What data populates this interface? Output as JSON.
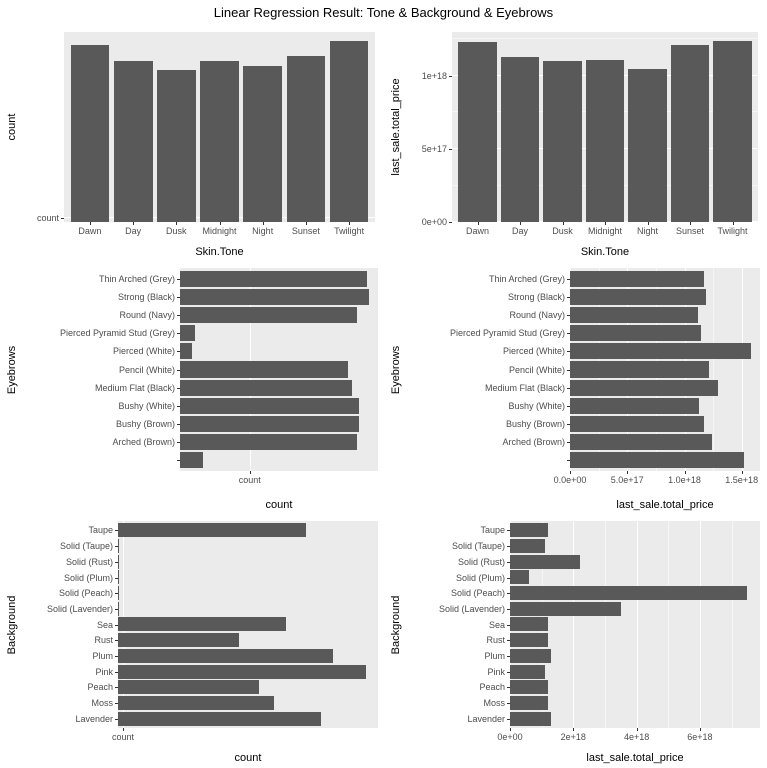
{
  "page_title": "Linear Regression Result: Tone & Background & Eyebrows",
  "theme": {
    "bar_color": "#595959",
    "panel_bg": "#EBEBEB",
    "grid_color": "#FFFFFF",
    "tick_text_color": "#4D4D4D",
    "axis_title_color": "#000000"
  },
  "chart_data": [
    {
      "name": "count-by-skin-tone",
      "type": "bar",
      "orientation": "vertical",
      "xlabel": "Skin.Tone",
      "ylabel": "count",
      "categories": [
        "Dawn",
        "Day",
        "Dusk",
        "Midnight",
        "Night",
        "Sunset",
        "Twilight"
      ],
      "values": [
        0.98,
        0.89,
        0.84,
        0.89,
        0.86,
        0.92,
        1.0
      ],
      "value_axis": {
        "max": 1.05,
        "relative": true,
        "note": "no numeric scale shown; values are fractions of tallest bar",
        "ticks": [
          {
            "label": "count",
            "at": 0.02
          }
        ]
      }
    },
    {
      "name": "total-price-by-skin-tone",
      "type": "bar",
      "orientation": "vertical",
      "xlabel": "Skin.Tone",
      "ylabel": "last_sale.total_price",
      "categories": [
        "Dawn",
        "Day",
        "Dusk",
        "Midnight",
        "Night",
        "Sunset",
        "Twilight"
      ],
      "values": [
        1.23e+18,
        1.13e+18,
        1.1e+18,
        1.11e+18,
        1.05e+18,
        1.21e+18,
        1.24e+18
      ],
      "value_axis": {
        "max": 1.3e+18,
        "relative": false,
        "ticks": [
          {
            "label": "0e+00",
            "at": 0
          },
          {
            "label": "5e+17",
            "at": 5e+17
          },
          {
            "label": "1e+18",
            "at": 1e+18
          }
        ]
      }
    },
    {
      "name": "count-by-eyebrows",
      "type": "bar",
      "orientation": "horizontal",
      "xlabel": "count",
      "ylabel": "Eyebrows",
      "categories": [
        "Thin Arched (Grey)",
        "Strong (Black)",
        "Round (Navy)",
        "Pierced Pyramid Stud (Grey)",
        "Pierced (White)",
        "Pencil (White)",
        "Medium Flat (Black)",
        "Bushy (White)",
        "Bushy (Brown)",
        "Arched (Brown)",
        ""
      ],
      "values": [
        0.99,
        1.0,
        0.94,
        0.08,
        0.065,
        0.89,
        0.91,
        0.95,
        0.95,
        0.94,
        0.12
      ],
      "value_axis": {
        "max": 1.05,
        "relative": true,
        "note": "no numeric scale shown; values are fractions of longest bar",
        "ticks": [
          {
            "label": "count",
            "at": 0.37
          }
        ]
      }
    },
    {
      "name": "total-price-by-eyebrows",
      "type": "bar",
      "orientation": "horizontal",
      "xlabel": "last_sale.total_price",
      "ylabel": "Eyebrows",
      "categories": [
        "Thin Arched (Grey)",
        "Strong (Black)",
        "Round (Navy)",
        "Pierced Pyramid Stud (Grey)",
        "Pierced (White)",
        "Pencil (White)",
        "Medium Flat (Black)",
        "Bushy (White)",
        "Bushy (Brown)",
        "Arched (Brown)",
        ""
      ],
      "values": [
        1.17e+18,
        1.19e+18,
        1.12e+18,
        1.14e+18,
        1.58e+18,
        1.21e+18,
        1.29e+18,
        1.13e+18,
        1.17e+18,
        1.24e+18,
        1.52e+18
      ],
      "value_axis": {
        "max": 1.66e+18,
        "relative": false,
        "ticks": [
          {
            "label": "0.0e+00",
            "at": 0
          },
          {
            "label": "5.0e+17",
            "at": 5e+17
          },
          {
            "label": "1.0e+18",
            "at": 1e+18
          },
          {
            "label": "1.5e+18",
            "at": 1.5e+18
          }
        ]
      }
    },
    {
      "name": "count-by-background",
      "type": "bar",
      "orientation": "horizontal",
      "xlabel": "count",
      "ylabel": "Background",
      "categories": [
        "Taupe",
        "Solid (Taupe)",
        "Solid (Rust)",
        "Solid (Plum)",
        "Solid (Peach)",
        "Solid (Lavender)",
        "Sea",
        "Rust",
        "Plum",
        "Pink",
        "Peach",
        "Moss",
        "Lavender"
      ],
      "values": [
        0.76,
        0.005,
        0.005,
        0.005,
        0.005,
        0.005,
        0.68,
        0.49,
        0.87,
        1.0,
        0.57,
        0.63,
        0.82
      ],
      "value_axis": {
        "max": 1.05,
        "relative": true,
        "note": "no numeric scale shown; values are fractions of longest bar",
        "ticks": [
          {
            "label": "count",
            "at": 0.02
          }
        ]
      }
    },
    {
      "name": "total-price-by-background",
      "type": "bar",
      "orientation": "horizontal",
      "xlabel": "last_sale.total_price",
      "ylabel": "Background",
      "categories": [
        "Taupe",
        "Solid (Taupe)",
        "Solid (Rust)",
        "Solid (Plum)",
        "Solid (Peach)",
        "Solid (Lavender)",
        "Sea",
        "Rust",
        "Plum",
        "Pink",
        "Peach",
        "Moss",
        "Lavender"
      ],
      "values": [
        1.2e+18,
        1.1e+18,
        2.2e+18,
        6e+17,
        7.5e+18,
        3.5e+18,
        1.2e+18,
        1.2e+18,
        1.3e+18,
        1.1e+18,
        1.2e+18,
        1.2e+18,
        1.3e+18
      ],
      "value_axis": {
        "max": 7.9e+18,
        "relative": false,
        "ticks": [
          {
            "label": "0e+00",
            "at": 0
          },
          {
            "label": "2e+18",
            "at": 2e+18
          },
          {
            "label": "4e+18",
            "at": 4e+18
          },
          {
            "label": "6e+18",
            "at": 6e+18
          }
        ]
      }
    }
  ]
}
